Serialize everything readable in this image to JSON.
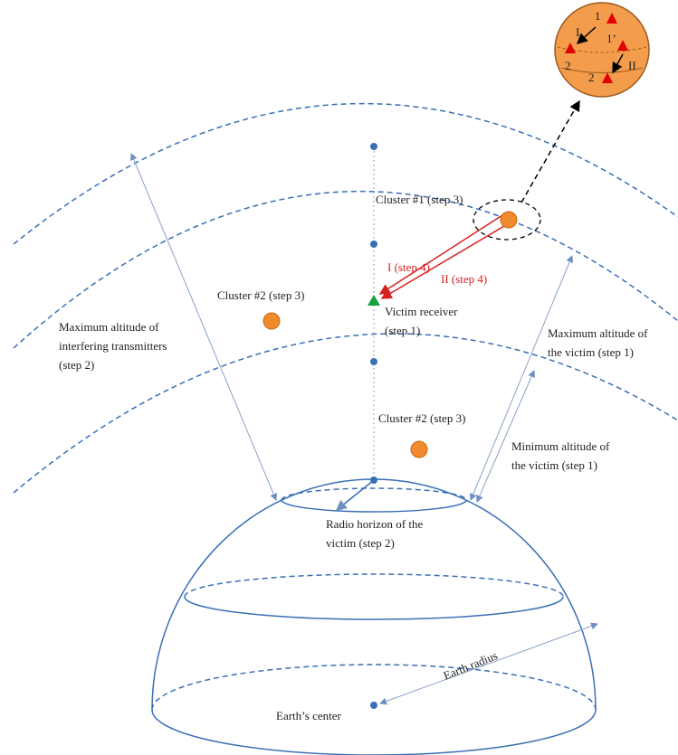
{
  "annotations": [
    {
      "lines": [
        "Cluster #1 (step 3)"
      ]
    },
    {
      "lines": [
        "I (step 4)"
      ]
    },
    {
      "lines": [
        "II (step 4)"
      ]
    },
    {
      "lines": [
        "Cluster #2 (step 3)"
      ]
    },
    {
      "lines": [
        "Victim receiver",
        "(step 1)"
      ]
    },
    {
      "lines": [
        "Maximum altitude of",
        "interfering transmitters",
        "(step 2)"
      ]
    },
    {
      "lines": [
        "Maximum altitude of",
        "the victim (step 1)"
      ]
    },
    {
      "lines": [
        "Cluster #2 (step 3)"
      ]
    },
    {
      "lines": [
        "Minimum altitude of",
        "the victim (step 1)"
      ]
    },
    {
      "lines": [
        "Radio horizon of the",
        "victim (step 2)"
      ]
    },
    {
      "lines": [
        "Earth radius"
      ]
    },
    {
      "lines": [
        "Earth’s center"
      ]
    }
  ],
  "inset": {
    "labels": [
      "1",
      "I",
      "1’",
      "2",
      "II",
      "2"
    ]
  }
}
